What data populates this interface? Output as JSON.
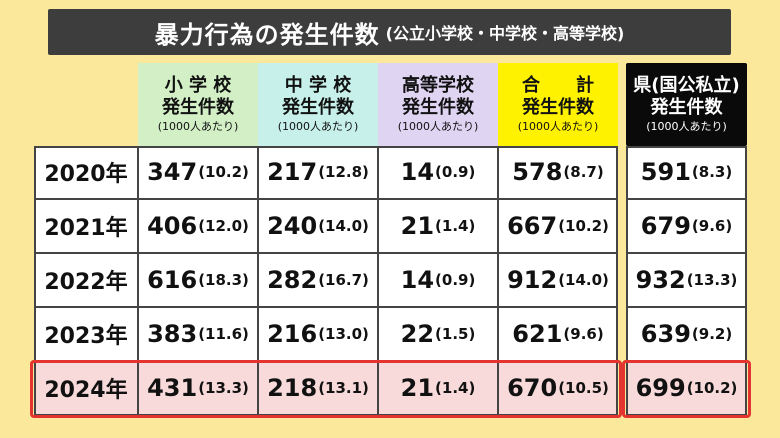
{
  "title": {
    "main": "暴力行為の発生件数",
    "sub": "(公立小学校・中学校・高等学校)"
  },
  "headers": [
    {
      "line1": "小 学 校",
      "line2": "発生件数",
      "line3": "(1000人あたり)",
      "color": "#d3efc6"
    },
    {
      "line1": "中 学 校",
      "line2": "発生件数",
      "line3": "(1000人あたり)",
      "color": "#c6f0e9"
    },
    {
      "line1": "高等学校",
      "line2": "発生件数",
      "line3": "(1000人あたり)",
      "color": "#e0d4f3"
    },
    {
      "line1": "合　　計",
      "line2": "発生件数",
      "line3": "(1000人あたり)",
      "color": "#fff200"
    }
  ],
  "pref_header": {
    "line1": "県(国公私立)",
    "line2": "発生件数",
    "line3": "(1000人あたり)"
  },
  "rows": [
    {
      "year": "2020年",
      "elem": "347",
      "elem_r": "(10.2)",
      "middle": "217",
      "middle_r": "(12.8)",
      "high": "14",
      "high_r": "(0.9)",
      "total": "578",
      "total_r": "(8.7)",
      "pref": "591",
      "pref_r": "(8.3)"
    },
    {
      "year": "2021年",
      "elem": "406",
      "elem_r": "(12.0)",
      "middle": "240",
      "middle_r": "(14.0)",
      "high": "21",
      "high_r": "(1.4)",
      "total": "667",
      "total_r": "(10.2)",
      "pref": "679",
      "pref_r": "(9.6)"
    },
    {
      "year": "2022年",
      "elem": "616",
      "elem_r": "(18.3)",
      "middle": "282",
      "middle_r": "(16.7)",
      "high": "14",
      "high_r": "(0.9)",
      "total": "912",
      "total_r": "(14.0)",
      "pref": "932",
      "pref_r": "(13.3)"
    },
    {
      "year": "2023年",
      "elem": "383",
      "elem_r": "(11.6)",
      "middle": "216",
      "middle_r": "(13.0)",
      "high": "22",
      "high_r": "(1.5)",
      "total": "621",
      "total_r": "(9.6)",
      "pref": "639",
      "pref_r": "(9.2)"
    },
    {
      "year": "2024年",
      "elem": "431",
      "elem_r": "(13.3)",
      "middle": "218",
      "middle_r": "(13.1)",
      "high": "21",
      "high_r": "(1.4)",
      "total": "670",
      "total_r": "(10.5)",
      "pref": "699",
      "pref_r": "(10.2)"
    }
  ],
  "colors": {
    "highlight": "#e3342f",
    "highlight_fill": "#f8dada",
    "background": "#fbe89a"
  }
}
